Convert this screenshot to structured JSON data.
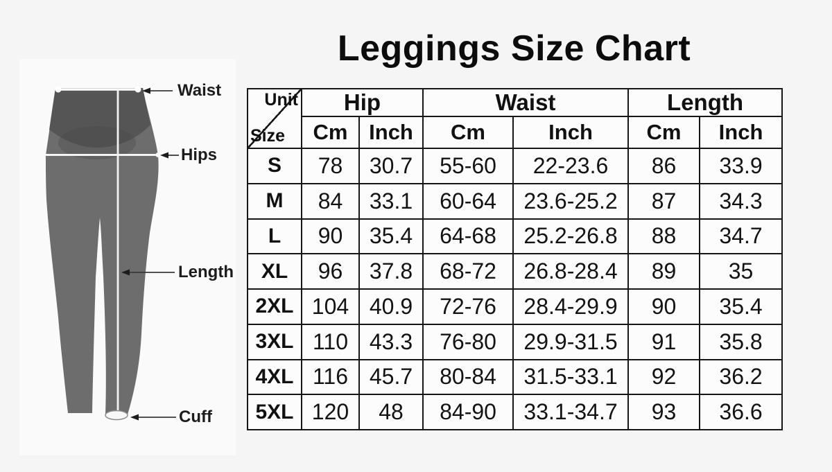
{
  "title": "Leggings Size Chart",
  "diagram": {
    "waist_label": "Waist",
    "hips_label": "Hips",
    "length_label": "Length",
    "cuff_label": "Cuff"
  },
  "table": {
    "corner_top": "Unit",
    "corner_bottom": "Size",
    "groups": [
      "Hip",
      "Waist",
      "Length"
    ],
    "unit_headers": [
      "Cm",
      "Inch",
      "Cm",
      "Inch",
      "Cm",
      "Inch"
    ],
    "rows": [
      {
        "size": "S",
        "values": [
          "78",
          "30.7",
          "55-60",
          "22-23.6",
          "86",
          "33.9"
        ]
      },
      {
        "size": "M",
        "values": [
          "84",
          "33.1",
          "60-64",
          "23.6-25.2",
          "87",
          "34.3"
        ]
      },
      {
        "size": "L",
        "values": [
          "90",
          "35.4",
          "64-68",
          "25.2-26.8",
          "88",
          "34.7"
        ]
      },
      {
        "size": "XL",
        "values": [
          "96",
          "37.8",
          "68-72",
          "26.8-28.4",
          "89",
          "35"
        ]
      },
      {
        "size": "2XL",
        "values": [
          "104",
          "40.9",
          "72-76",
          "28.4-29.9",
          "90",
          "35.4"
        ]
      },
      {
        "size": "3XL",
        "values": [
          "110",
          "43.3",
          "76-80",
          "29.9-31.5",
          "91",
          "35.8"
        ]
      },
      {
        "size": "4XL",
        "values": [
          "116",
          "45.7",
          "80-84",
          "31.5-33.1",
          "92",
          "36.2"
        ]
      },
      {
        "size": "5XL",
        "values": [
          "120",
          "48",
          "84-90",
          "33.1-34.7",
          "93",
          "36.6"
        ]
      }
    ]
  },
  "colors": {
    "background": "#f5f5f5",
    "table_border": "#161616",
    "text": "#111111",
    "leggings_body": "#6d6d6d",
    "leggings_waistband": "#525252",
    "measure_line": "#ffffff"
  },
  "chart_data": {
    "type": "table",
    "title": "Leggings Size Chart",
    "columns": [
      "Size",
      "Hip Cm",
      "Hip Inch",
      "Waist Cm",
      "Waist Inch",
      "Length Cm",
      "Length Inch"
    ],
    "rows": [
      [
        "S",
        78,
        30.7,
        "55-60",
        "22-23.6",
        86,
        33.9
      ],
      [
        "M",
        84,
        33.1,
        "60-64",
        "23.6-25.2",
        87,
        34.3
      ],
      [
        "L",
        90,
        35.4,
        "64-68",
        "25.2-26.8",
        88,
        34.7
      ],
      [
        "XL",
        96,
        37.8,
        "68-72",
        "26.8-28.4",
        89,
        35
      ],
      [
        "2XL",
        104,
        40.9,
        "72-76",
        "28.4-29.9",
        90,
        35.4
      ],
      [
        "3XL",
        110,
        43.3,
        "76-80",
        "29.9-31.5",
        91,
        35.8
      ],
      [
        "4XL",
        116,
        45.7,
        "80-84",
        "31.5-33.1",
        92,
        36.2
      ],
      [
        "5XL",
        120,
        48,
        "84-90",
        "33.1-34.7",
        93,
        36.6
      ]
    ]
  }
}
